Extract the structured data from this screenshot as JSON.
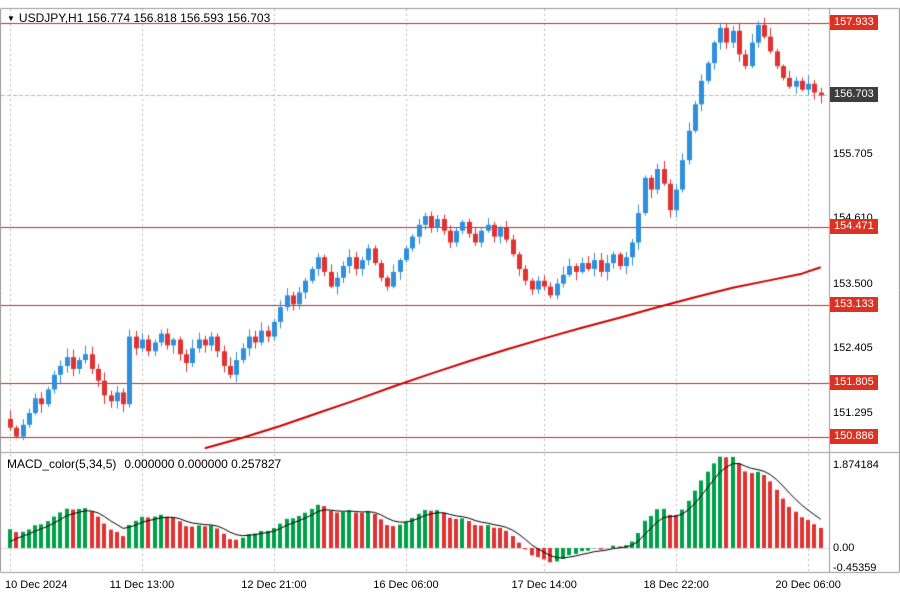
{
  "header": {
    "symbol": "USDJPY,H1",
    "ohlc": "156.774 156.818 156.593 156.703"
  },
  "macd": {
    "header_label": "MACD_color(5,34,5)",
    "header_values": "0.000000 0.000000 0.257827"
  },
  "price_axis": {
    "plain_labels": [
      "155.705",
      "154.610",
      "153.500",
      "152.405",
      "151.295"
    ],
    "level_badges": [
      "157.933",
      "154.471",
      "153.133",
      "151.805",
      "150.886"
    ],
    "current_badge": "156.703"
  },
  "macd_axis": {
    "labels": [
      "1.874184",
      "0.00",
      "-0.45359"
    ]
  },
  "colors": {
    "candle_up": "#2f8fdd",
    "candle_down": "#e03232",
    "level_line": "#cc2a20",
    "badge_red": "#dd3222",
    "badge_dark": "#3d3d3d",
    "ma_line": "#cc0000",
    "macd_up": "#00a04a",
    "macd_down": "#e03232",
    "signal_line": "#000000",
    "grid": "#bdbdbd",
    "border": "#9a9a9a"
  },
  "chart_data": [
    {
      "type": "candlestick",
      "symbol": "USDJPY",
      "timeframe": "H1",
      "title": "USDJPY,H1 156.774 156.818 156.593 156.703",
      "ylim": [
        150.7,
        158.2
      ],
      "first_open": 151.2,
      "closes": [
        151.05,
        150.9,
        151.1,
        151.3,
        151.55,
        151.45,
        151.7,
        151.95,
        152.1,
        152.25,
        152.05,
        152.2,
        152.3,
        152.05,
        151.85,
        151.6,
        151.5,
        151.65,
        151.45,
        152.6,
        152.4,
        152.55,
        152.35,
        152.5,
        152.65,
        152.45,
        152.55,
        152.3,
        152.15,
        152.4,
        152.55,
        152.45,
        152.6,
        152.35,
        152.1,
        151.95,
        152.2,
        152.4,
        152.6,
        152.5,
        152.7,
        152.6,
        152.85,
        153.1,
        153.3,
        153.15,
        153.35,
        153.55,
        153.75,
        153.95,
        153.7,
        153.45,
        153.6,
        153.8,
        153.95,
        153.75,
        153.9,
        154.1,
        153.85,
        153.6,
        153.45,
        153.7,
        153.9,
        154.1,
        154.3,
        154.5,
        154.65,
        154.45,
        154.6,
        154.4,
        154.2,
        154.4,
        154.55,
        154.35,
        154.2,
        154.4,
        154.5,
        154.3,
        154.45,
        154.25,
        154.0,
        153.75,
        153.55,
        153.4,
        153.55,
        153.45,
        153.3,
        153.5,
        153.65,
        153.8,
        153.7,
        153.85,
        153.75,
        153.9,
        153.7,
        153.85,
        154.0,
        153.8,
        153.95,
        154.2,
        154.7,
        155.3,
        155.1,
        155.45,
        155.2,
        154.75,
        155.1,
        155.6,
        156.1,
        156.55,
        156.95,
        157.25,
        157.6,
        157.85,
        157.6,
        157.8,
        157.4,
        157.2,
        157.6,
        157.9,
        157.7,
        157.45,
        157.2,
        157.0,
        156.85,
        156.95,
        156.8,
        156.9,
        156.75,
        156.703
      ],
      "levels": [
        157.933,
        154.471,
        153.133,
        151.805,
        150.886
      ],
      "current_price": 156.703,
      "ma_points": [
        [
          31,
          150.7
        ],
        [
          37,
          150.88
        ],
        [
          43,
          151.08
        ],
        [
          49,
          151.3
        ],
        [
          55,
          151.52
        ],
        [
          61,
          151.75
        ],
        [
          67,
          151.97
        ],
        [
          73,
          152.18
        ],
        [
          79,
          152.38
        ],
        [
          85,
          152.57
        ],
        [
          91,
          152.75
        ],
        [
          97,
          152.92
        ],
        [
          103,
          153.1
        ],
        [
          109,
          153.27
        ],
        [
          115,
          153.43
        ],
        [
          121,
          153.56
        ],
        [
          126,
          153.67
        ],
        [
          129,
          153.78
        ]
      ],
      "x_ticks": [
        {
          "index": 0,
          "label": "10 Dec 2024"
        },
        {
          "index": 21,
          "label": "11 Dec 13:00"
        },
        {
          "index": 42,
          "label": "12 Dec 21:00"
        },
        {
          "index": 63,
          "label": "16 Dec 06:00"
        },
        {
          "index": 85,
          "label": "17 Dec 14:00"
        },
        {
          "index": 106,
          "label": "18 Dec 22:00"
        },
        {
          "index": 127,
          "label": "20 Dec 06:00"
        }
      ]
    },
    {
      "type": "macd_histogram",
      "name": "MACD_color",
      "params": [
        5,
        34,
        5
      ],
      "header_values": [
        "0.000000",
        "0.000000",
        "0.257827"
      ],
      "axis_labels": [
        "1.874184",
        "0.00",
        "-0.45359"
      ],
      "ylim": [
        -0.45359,
        1.874184
      ]
    }
  ]
}
